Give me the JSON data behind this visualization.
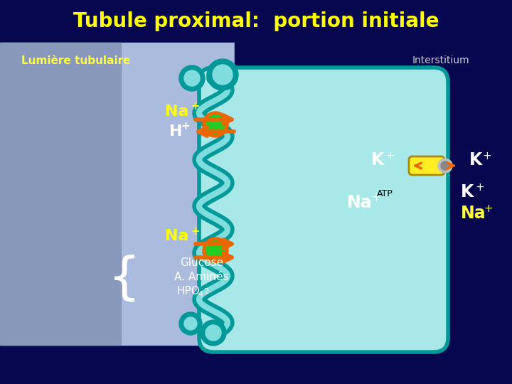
{
  "title": "Tubule proximal:  portion initiale",
  "title_color": "#FFFF00",
  "title_fontsize": 20,
  "bg_dark": "#070750",
  "bg_left_top": "#9090BB",
  "bg_left_bottom": "#C8C8E0",
  "lumiere_label": "Lumière tubulaire",
  "lumiere_color": "#FFFF44",
  "interstitium_label": "Interstitium",
  "interstitium_color": "#CCCCCC",
  "cell_fill": "#A8E8E8",
  "cell_border": "#009999",
  "brush_fill": "#009999",
  "brush_light": "#80DDDD",
  "arrow_color": "#EE6600",
  "transporter_color": "#22CC22",
  "transporter_ring": "#EE6600",
  "na_color": "#FFFF00",
  "h_color": "#FFFFFF",
  "k_color": "#FFFFFF",
  "na_interstitium_color": "#FFFFFF",
  "na_interstitium_outside_color": "#FFFF44",
  "atp_color": "#000000",
  "glucose_label": "Glucose",
  "aminoacid_label": "A. Aminés",
  "hpo4_label": "HPO",
  "labels_color": "#FFFFFF",
  "pump_body_color": "#FFEE22",
  "pump_ring_color": "#CCCCCC",
  "pump_arrow_color": "#EE6600",
  "brace_color": "#FFFFFF"
}
